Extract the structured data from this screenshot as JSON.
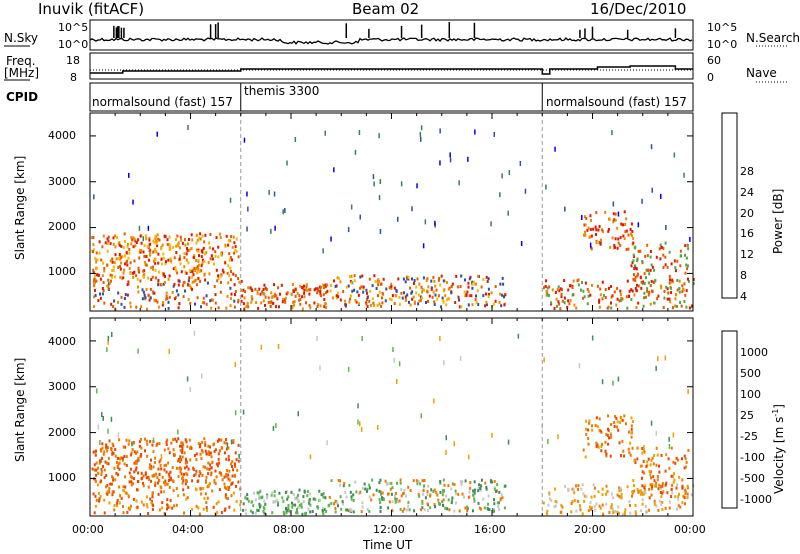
{
  "chart_data": {
    "type": "heatmap",
    "header": {
      "station": "Inuvik (fitACF)",
      "beam": "Beam 02",
      "date": "16/Dec/2010"
    },
    "top_panels": {
      "nsky_label": "N.Sky",
      "nsky_ticks": [
        "10^5",
        "10^0"
      ],
      "nsearch_label": "N.Search",
      "nsearch_ticks": [
        "10^5",
        "10^0"
      ],
      "freq_label": "Freq.",
      "freq_unit": "[MHz]",
      "freq_ticks": [
        "18",
        "8"
      ],
      "nave_label": "Nave",
      "nave_ticks": [
        "60",
        "0"
      ],
      "cpid_label": "CPID",
      "cpid_segments": [
        {
          "label": "normalsound (fast) 157",
          "start_h": 0,
          "end_h": 6
        },
        {
          "label": "themis 3300",
          "start_h": 6,
          "end_h": 18
        },
        {
          "label": "normalsound (fast) 157",
          "start_h": 18,
          "end_h": 24
        }
      ]
    },
    "x_axis": {
      "label": "Time UT",
      "range_h": [
        0,
        24
      ],
      "ticks": [
        "00:00",
        "04:00",
        "08:00",
        "12:00",
        "16:00",
        "20:00",
        "00:00"
      ]
    },
    "y_axis": {
      "label": "Slant Range [km]",
      "range_km": [
        180,
        4500
      ],
      "ticks": [
        "1000",
        "2000",
        "3000",
        "4000"
      ]
    },
    "power_colorbar": {
      "label": "Power [dB]",
      "ticks": [
        "28",
        "24",
        "20",
        "16",
        "12",
        "8",
        "4"
      ],
      "colors": [
        "#0000ff",
        "#2d4fa0",
        "#3b7d56",
        "#52a64a",
        "#d7d000",
        "#f5b800",
        "#f08a00",
        "#e85a00",
        "#e01800"
      ]
    },
    "velocity_colorbar": {
      "label": "Velocity [m s",
      "label_sup": "-1",
      "label_end": "]",
      "ticks": [
        "1000",
        "500",
        "100",
        "25",
        "-25",
        "-100",
        "-500",
        "-1000"
      ],
      "colors": [
        "#1a4ca0",
        "#2f6e88",
        "#3d8a5a",
        "#5cb84a",
        "#c8c8c8",
        "#f0a000",
        "#f07800",
        "#e84800",
        "#e00000"
      ]
    }
  }
}
